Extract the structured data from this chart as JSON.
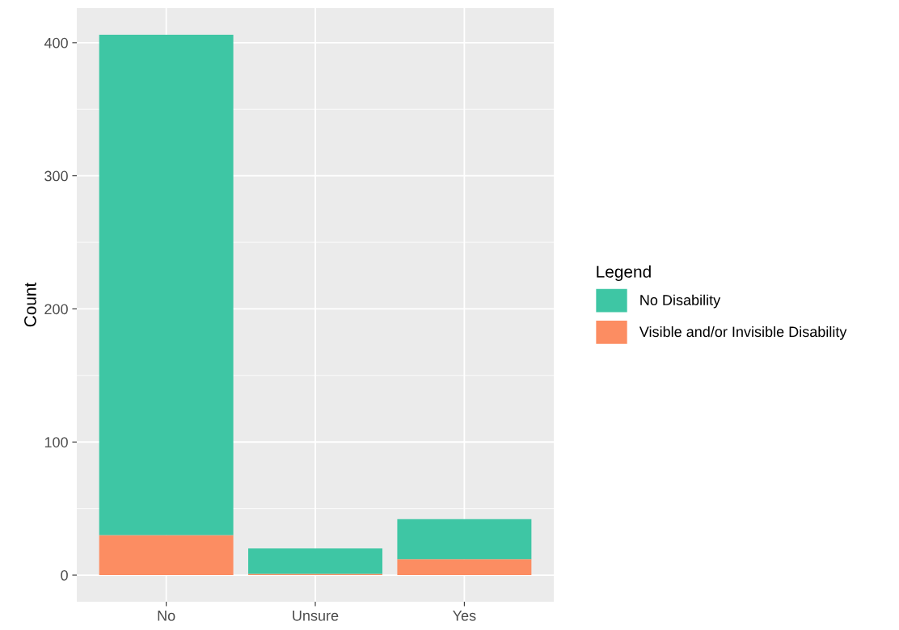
{
  "chart_data": {
    "type": "bar",
    "stacked": true,
    "ylabel": "Count",
    "legend_title": "Legend",
    "legend": "right",
    "grid": true,
    "categories": [
      "No",
      "Unsure",
      "Yes"
    ],
    "series": [
      {
        "name": "Visible and/or Invisible Disability",
        "color": "#fc8d62",
        "values": [
          30,
          1,
          12
        ]
      },
      {
        "name": "No Disability",
        "color": "#3ec6a4",
        "values": [
          376,
          19,
          30
        ]
      }
    ],
    "ylim": [
      -20,
      426
    ],
    "yticks": [
      0,
      100,
      200,
      300,
      400
    ]
  }
}
